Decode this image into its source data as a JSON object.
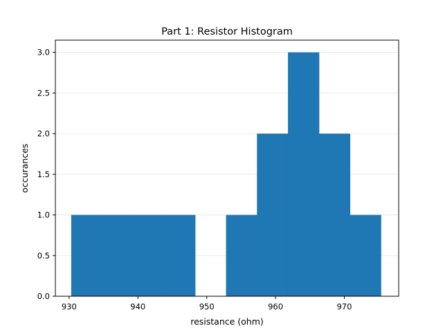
{
  "chart_data": {
    "type": "bar",
    "title": "Part 1: Resistor Histogram",
    "xlabel": "resistance (ohm)",
    "ylabel": "occurances",
    "xlim": [
      928.0,
      977.9
    ],
    "ylim": [
      0.0,
      3.15
    ],
    "x_ticks": [
      930,
      940,
      950,
      960,
      970
    ],
    "y_ticks": [
      0.0,
      0.5,
      1.0,
      1.5,
      2.0,
      2.5,
      3.0
    ],
    "x_tick_labels": [
      "930",
      "940",
      "950",
      "960",
      "970"
    ],
    "y_tick_labels": [
      "0.0",
      "0.5",
      "1.0",
      "1.5",
      "2.0",
      "2.5",
      "3.0"
    ],
    "bin_edges": [
      930.3,
      934.8,
      939.3,
      943.8,
      948.3,
      952.8,
      957.3,
      961.8,
      966.3,
      970.8,
      975.3
    ],
    "values": [
      1,
      1,
      1,
      1,
      0,
      1,
      2,
      3,
      2,
      1
    ],
    "grid": true,
    "bar_color": "#1f77b4"
  }
}
